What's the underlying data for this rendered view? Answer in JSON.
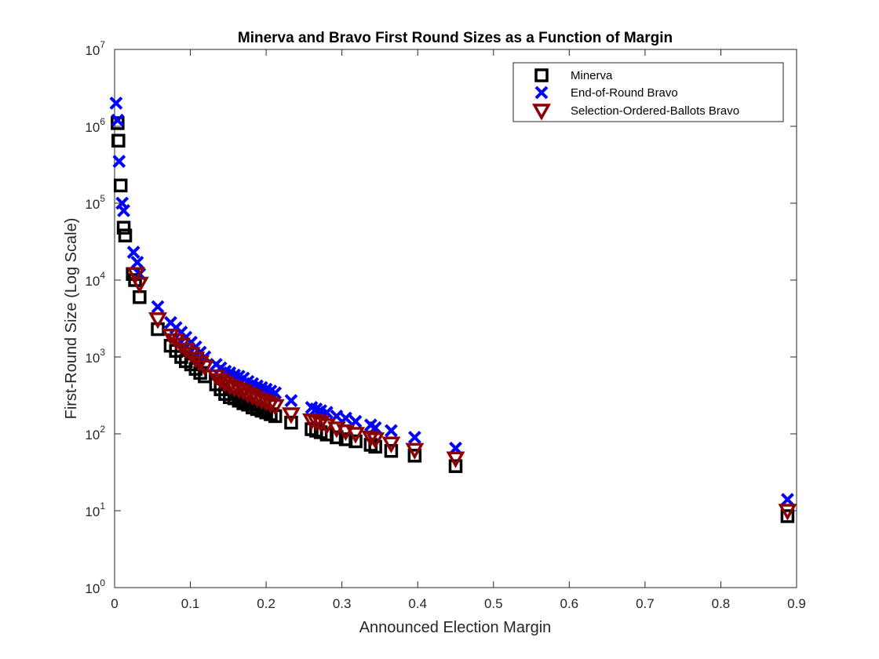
{
  "chart_data": {
    "type": "scatter",
    "title": "Minerva and Bravo First Round Sizes as a Function of Margin",
    "xlabel": "Announced Election Margin",
    "ylabel": "First-Round Size (Log Scale)",
    "xlim": [
      0,
      0.9
    ],
    "ylim": [
      1,
      10000000
    ],
    "yscale": "log",
    "x_ticks": [
      "0",
      "0.1",
      "0.2",
      "0.3",
      "0.4",
      "0.5",
      "0.6",
      "0.7",
      "0.8",
      "0.9"
    ],
    "y_tick_exponents": [
      "0",
      "1",
      "2",
      "3",
      "4",
      "5",
      "6",
      "7"
    ],
    "y_tick_base": "10",
    "grid": false,
    "legend_position": "top-right",
    "series": [
      {
        "name": "Minerva",
        "marker": "square",
        "color": "#000000",
        "points": [
          [
            0.004,
            1100000
          ],
          [
            0.005,
            650000
          ],
          [
            0.008,
            170000
          ],
          [
            0.012,
            48000
          ],
          [
            0.014,
            38000
          ],
          [
            0.024,
            12000
          ],
          [
            0.027,
            10000
          ],
          [
            0.033,
            6000
          ],
          [
            0.057,
            2300
          ],
          [
            0.074,
            1400
          ],
          [
            0.081,
            1200
          ],
          [
            0.088,
            1000
          ],
          [
            0.094,
            880
          ],
          [
            0.101,
            800
          ],
          [
            0.107,
            700
          ],
          [
            0.113,
            620
          ],
          [
            0.119,
            560
          ],
          [
            0.134,
            440
          ],
          [
            0.14,
            380
          ],
          [
            0.146,
            330
          ],
          [
            0.152,
            300
          ],
          [
            0.158,
            290
          ],
          [
            0.164,
            270
          ],
          [
            0.17,
            250
          ],
          [
            0.176,
            240
          ],
          [
            0.182,
            220
          ],
          [
            0.188,
            210
          ],
          [
            0.194,
            200
          ],
          [
            0.2,
            190
          ],
          [
            0.206,
            180
          ],
          [
            0.212,
            170
          ],
          [
            0.233,
            140
          ],
          [
            0.26,
            115
          ],
          [
            0.266,
            110
          ],
          [
            0.272,
            105
          ],
          [
            0.28,
            98
          ],
          [
            0.293,
            90
          ],
          [
            0.305,
            85
          ],
          [
            0.318,
            80
          ],
          [
            0.338,
            72
          ],
          [
            0.344,
            68
          ],
          [
            0.365,
            60
          ],
          [
            0.396,
            52
          ],
          [
            0.45,
            38
          ],
          [
            0.888,
            8.5
          ]
        ]
      },
      {
        "name": "End-of-Round Bravo",
        "marker": "x",
        "color": "#0000ff",
        "points": [
          [
            0.002,
            2000000
          ],
          [
            0.004,
            1200000
          ],
          [
            0.006,
            350000
          ],
          [
            0.01,
            100000
          ],
          [
            0.012,
            80000
          ],
          [
            0.025,
            23000
          ],
          [
            0.03,
            17000
          ],
          [
            0.033,
            12000
          ],
          [
            0.057,
            4500
          ],
          [
            0.074,
            2800
          ],
          [
            0.081,
            2400
          ],
          [
            0.088,
            2100
          ],
          [
            0.094,
            1800
          ],
          [
            0.101,
            1550
          ],
          [
            0.107,
            1350
          ],
          [
            0.113,
            1150
          ],
          [
            0.119,
            1000
          ],
          [
            0.134,
            800
          ],
          [
            0.14,
            720
          ],
          [
            0.146,
            650
          ],
          [
            0.152,
            620
          ],
          [
            0.158,
            580
          ],
          [
            0.164,
            560
          ],
          [
            0.17,
            530
          ],
          [
            0.176,
            480
          ],
          [
            0.182,
            450
          ],
          [
            0.188,
            420
          ],
          [
            0.194,
            400
          ],
          [
            0.2,
            380
          ],
          [
            0.206,
            360
          ],
          [
            0.212,
            340
          ],
          [
            0.233,
            270
          ],
          [
            0.26,
            220
          ],
          [
            0.266,
            210
          ],
          [
            0.272,
            200
          ],
          [
            0.28,
            190
          ],
          [
            0.293,
            170
          ],
          [
            0.305,
            160
          ],
          [
            0.318,
            145
          ],
          [
            0.338,
            130
          ],
          [
            0.344,
            120
          ],
          [
            0.365,
            110
          ],
          [
            0.396,
            90
          ],
          [
            0.45,
            65
          ],
          [
            0.888,
            14
          ]
        ]
      },
      {
        "name": "Selection-Ordered-Ballots Bravo",
        "marker": "triangle-down",
        "color": "#8b0000",
        "points": [
          [
            0.028,
            12000
          ],
          [
            0.033,
            9000
          ],
          [
            0.057,
            3100
          ],
          [
            0.074,
            1900
          ],
          [
            0.081,
            1650
          ],
          [
            0.088,
            1450
          ],
          [
            0.094,
            1250
          ],
          [
            0.101,
            1100
          ],
          [
            0.107,
            950
          ],
          [
            0.113,
            850
          ],
          [
            0.119,
            750
          ],
          [
            0.134,
            560
          ],
          [
            0.14,
            500
          ],
          [
            0.146,
            460
          ],
          [
            0.152,
            420
          ],
          [
            0.158,
            400
          ],
          [
            0.164,
            380
          ],
          [
            0.17,
            360
          ],
          [
            0.176,
            330
          ],
          [
            0.182,
            310
          ],
          [
            0.188,
            290
          ],
          [
            0.194,
            275
          ],
          [
            0.2,
            260
          ],
          [
            0.206,
            245
          ],
          [
            0.212,
            230
          ],
          [
            0.233,
            180
          ],
          [
            0.26,
            150
          ],
          [
            0.266,
            145
          ],
          [
            0.272,
            140
          ],
          [
            0.28,
            130
          ],
          [
            0.293,
            118
          ],
          [
            0.305,
            108
          ],
          [
            0.318,
            100
          ],
          [
            0.338,
            90
          ],
          [
            0.344,
            85
          ],
          [
            0.365,
            75
          ],
          [
            0.396,
            62
          ],
          [
            0.45,
            48
          ],
          [
            0.888,
            10
          ]
        ]
      }
    ]
  }
}
